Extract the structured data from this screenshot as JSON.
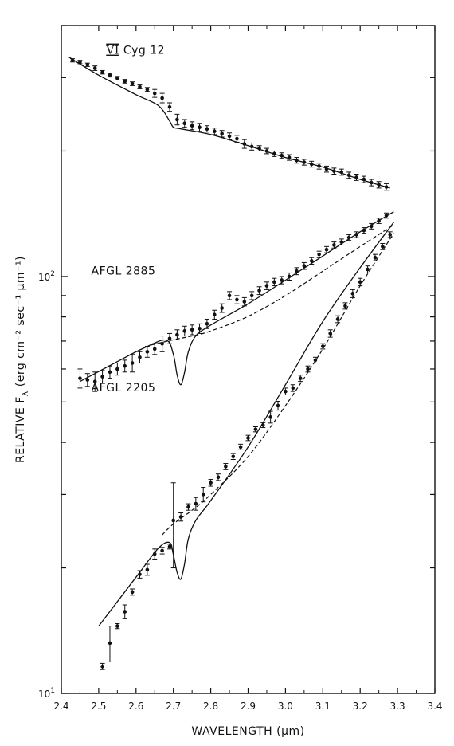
{
  "chart_data": {
    "type": "line",
    "xlabel": "WAVELENGTH (μm)",
    "ylabel": "RELATIVE F",
    "ylabel_sub": "λ",
    "ylabel_units": "(erg cm⁻² sec⁻¹ μm⁻¹)",
    "xlim": [
      2.4,
      3.4
    ],
    "ylim": [
      10,
      400
    ],
    "y_scale": "log",
    "x_ticks": [
      2.4,
      2.5,
      2.6,
      2.7,
      2.8,
      2.9,
      3.0,
      3.1,
      3.2,
      3.3,
      3.4
    ],
    "x_tick_labels": [
      "2.4",
      "2.5",
      "2.6",
      "2.7",
      "2.8",
      "2.9",
      "3.0",
      "3.1",
      "3.2",
      "3.3",
      "3.4"
    ],
    "y_tick_labels": [
      {
        "value": 100,
        "base": "10",
        "exp": "2"
      },
      {
        "value": 10,
        "base": "10",
        "exp": "1"
      }
    ],
    "grid": false,
    "series": [
      {
        "name": "VI Cyg 12",
        "label_parts": [
          "VI",
          "Cyg 12"
        ],
        "label_at": [
          2.52,
          342
        ],
        "model_solid": [
          [
            2.42,
            336
          ],
          [
            2.5,
            304
          ],
          [
            2.6,
            273
          ],
          [
            2.66,
            257
          ],
          [
            2.69,
            236
          ],
          [
            2.7,
            228
          ],
          [
            2.72,
            226
          ],
          [
            2.8,
            219
          ],
          [
            2.9,
            206
          ],
          [
            3.0,
            193
          ],
          [
            3.1,
            183
          ],
          [
            3.2,
            171
          ],
          [
            3.28,
            163
          ]
        ],
        "points": [
          [
            2.43,
            330,
            3
          ],
          [
            2.45,
            327,
            3
          ],
          [
            2.47,
            322,
            3
          ],
          [
            2.49,
            316,
            4
          ],
          [
            2.51,
            309,
            3
          ],
          [
            2.53,
            304,
            3
          ],
          [
            2.55,
            299,
            3
          ],
          [
            2.57,
            294,
            3
          ],
          [
            2.59,
            290,
            3
          ],
          [
            2.61,
            285,
            3
          ],
          [
            2.63,
            281,
            3
          ],
          [
            2.65,
            275,
            6
          ],
          [
            2.67,
            268,
            7
          ],
          [
            2.69,
            255,
            6
          ],
          [
            2.71,
            238,
            7
          ],
          [
            2.73,
            233,
            5
          ],
          [
            2.75,
            230,
            5
          ],
          [
            2.77,
            228,
            5
          ],
          [
            2.79,
            226,
            4
          ],
          [
            2.81,
            223,
            4
          ],
          [
            2.83,
            220,
            4
          ],
          [
            2.85,
            217,
            4
          ],
          [
            2.87,
            214,
            4
          ],
          [
            2.89,
            208,
            5
          ],
          [
            2.91,
            205,
            4
          ],
          [
            2.93,
            203,
            3
          ],
          [
            2.95,
            200,
            3
          ],
          [
            2.97,
            197,
            3
          ],
          [
            2.99,
            195,
            3
          ],
          [
            3.01,
            193,
            3
          ],
          [
            3.03,
            190,
            3
          ],
          [
            3.05,
            188,
            3
          ],
          [
            3.07,
            186,
            3
          ],
          [
            3.09,
            184,
            3
          ],
          [
            3.11,
            181,
            3
          ],
          [
            3.13,
            179,
            3
          ],
          [
            3.15,
            178,
            3
          ],
          [
            3.17,
            175,
            3
          ],
          [
            3.19,
            173,
            3
          ],
          [
            3.21,
            171,
            3
          ],
          [
            3.23,
            168,
            3
          ],
          [
            3.25,
            166,
            3
          ],
          [
            3.27,
            164,
            3
          ]
        ]
      },
      {
        "name": "AFGL 2885",
        "label_at": [
          2.48,
          101
        ],
        "model_solid": [
          [
            2.45,
            56
          ],
          [
            2.55,
            62.5
          ],
          [
            2.62,
            67.3
          ],
          [
            2.68,
            70.4
          ],
          [
            2.7,
            65
          ],
          [
            2.71,
            58
          ],
          [
            2.72,
            55
          ],
          [
            2.73,
            59
          ],
          [
            2.74,
            66
          ],
          [
            2.76,
            72
          ],
          [
            2.8,
            76.5
          ],
          [
            2.9,
            86
          ],
          [
            3.0,
            98
          ],
          [
            3.1,
            112
          ],
          [
            3.2,
            128
          ],
          [
            3.29,
            143
          ]
        ],
        "model_dashed": [
          [
            2.64,
            68.5
          ],
          [
            2.7,
            70.5
          ],
          [
            2.75,
            72
          ],
          [
            2.8,
            74
          ],
          [
            2.9,
            80.2
          ],
          [
            3.0,
            90
          ],
          [
            3.1,
            103
          ],
          [
            3.2,
            118
          ],
          [
            3.29,
            133
          ]
        ],
        "points": [
          [
            2.45,
            57,
            3
          ],
          [
            2.47,
            56.5,
            2
          ],
          [
            2.49,
            56,
            3
          ],
          [
            2.51,
            57.5,
            2
          ],
          [
            2.53,
            59,
            2
          ],
          [
            2.55,
            60,
            2
          ],
          [
            2.57,
            61,
            2
          ],
          [
            2.59,
            62,
            3
          ],
          [
            2.61,
            64,
            2
          ],
          [
            2.63,
            66,
            2
          ],
          [
            2.65,
            67,
            2
          ],
          [
            2.67,
            69,
            3
          ],
          [
            2.69,
            71,
            2
          ],
          [
            2.71,
            72.5,
            2
          ],
          [
            2.73,
            74,
            2
          ],
          [
            2.75,
            74.5,
            2
          ],
          [
            2.77,
            75,
            2
          ],
          [
            2.79,
            77,
            2
          ],
          [
            2.81,
            81,
            2
          ],
          [
            2.83,
            84,
            2
          ],
          [
            2.85,
            90,
            2
          ],
          [
            2.87,
            88,
            2
          ],
          [
            2.89,
            87,
            2
          ],
          [
            2.91,
            90,
            2
          ],
          [
            2.93,
            92.5,
            2
          ],
          [
            2.95,
            95,
            2
          ],
          [
            2.97,
            97,
            2
          ],
          [
            2.99,
            98,
            2
          ],
          [
            3.01,
            100,
            2
          ],
          [
            3.03,
            103,
            2
          ],
          [
            3.05,
            106,
            2
          ],
          [
            3.07,
            109,
            2
          ],
          [
            3.09,
            113,
            2
          ],
          [
            3.11,
            116,
            2
          ],
          [
            3.13,
            119,
            2
          ],
          [
            3.15,
            121,
            2
          ],
          [
            3.17,
            124,
            2
          ],
          [
            3.19,
            126,
            2
          ],
          [
            3.21,
            129,
            2
          ],
          [
            3.23,
            132,
            2
          ],
          [
            3.25,
            136,
            2
          ],
          [
            3.27,
            140,
            2
          ]
        ]
      },
      {
        "name": "AFGL 2205",
        "label_at": [
          2.48,
          53
        ],
        "model_solid": [
          [
            2.5,
            14.5
          ],
          [
            2.6,
            19
          ],
          [
            2.66,
            22.3
          ],
          [
            2.69,
            23
          ],
          [
            2.7,
            21.5
          ],
          [
            2.71,
            19.5
          ],
          [
            2.72,
            18.8
          ],
          [
            2.73,
            20.5
          ],
          [
            2.74,
            23.5
          ],
          [
            2.76,
            26
          ],
          [
            2.8,
            29
          ],
          [
            2.9,
            39
          ],
          [
            3.0,
            55
          ],
          [
            3.1,
            78
          ],
          [
            3.2,
            105
          ],
          [
            3.29,
            135
          ]
        ],
        "model_dashed": [
          [
            2.67,
            24
          ],
          [
            2.7,
            25.5
          ],
          [
            2.75,
            27.5
          ],
          [
            2.8,
            30
          ],
          [
            2.9,
            37
          ],
          [
            3.0,
            49
          ],
          [
            3.1,
            67
          ],
          [
            3.2,
            95
          ],
          [
            3.29,
            127
          ]
        ],
        "points": [
          [
            2.51,
            11.6,
            0.2
          ],
          [
            2.53,
            13.2,
            1.3
          ],
          [
            2.55,
            14.5,
            0.2
          ],
          [
            2.57,
            15.7,
            0.6
          ],
          [
            2.59,
            17.5,
            0.3
          ],
          [
            2.61,
            19.3,
            0.4
          ],
          [
            2.63,
            19.8,
            0.6
          ],
          [
            2.65,
            21.6,
            0.6
          ],
          [
            2.67,
            22,
            0.4
          ],
          [
            2.69,
            22.5,
            0.3
          ],
          [
            2.7,
            26,
            6
          ],
          [
            2.72,
            26.5,
            0.6
          ],
          [
            2.74,
            28,
            0.5
          ],
          [
            2.76,
            28.5,
            1
          ],
          [
            2.78,
            30,
            1.2
          ],
          [
            2.8,
            32,
            0.6
          ],
          [
            2.82,
            33,
            0.6
          ],
          [
            2.84,
            35,
            0.6
          ],
          [
            2.86,
            37,
            0.6
          ],
          [
            2.88,
            39,
            0.6
          ],
          [
            2.9,
            41,
            0.6
          ],
          [
            2.92,
            43,
            0.6
          ],
          [
            2.94,
            44,
            0.6
          ],
          [
            2.96,
            46,
            1.5
          ],
          [
            2.98,
            49,
            1.2
          ],
          [
            3.0,
            53,
            1
          ],
          [
            3.02,
            54,
            1
          ],
          [
            3.04,
            57,
            1
          ],
          [
            3.06,
            60,
            1
          ],
          [
            3.08,
            63,
            1
          ],
          [
            3.1,
            68,
            1
          ],
          [
            3.12,
            73,
            1.5
          ],
          [
            3.14,
            79,
            1.5
          ],
          [
            3.16,
            85,
            1.5
          ],
          [
            3.18,
            91,
            2
          ],
          [
            3.2,
            97,
            2
          ],
          [
            3.22,
            104,
            2
          ],
          [
            3.24,
            111,
            2
          ],
          [
            3.26,
            118,
            2
          ],
          [
            3.28,
            126,
            2
          ]
        ]
      }
    ]
  }
}
